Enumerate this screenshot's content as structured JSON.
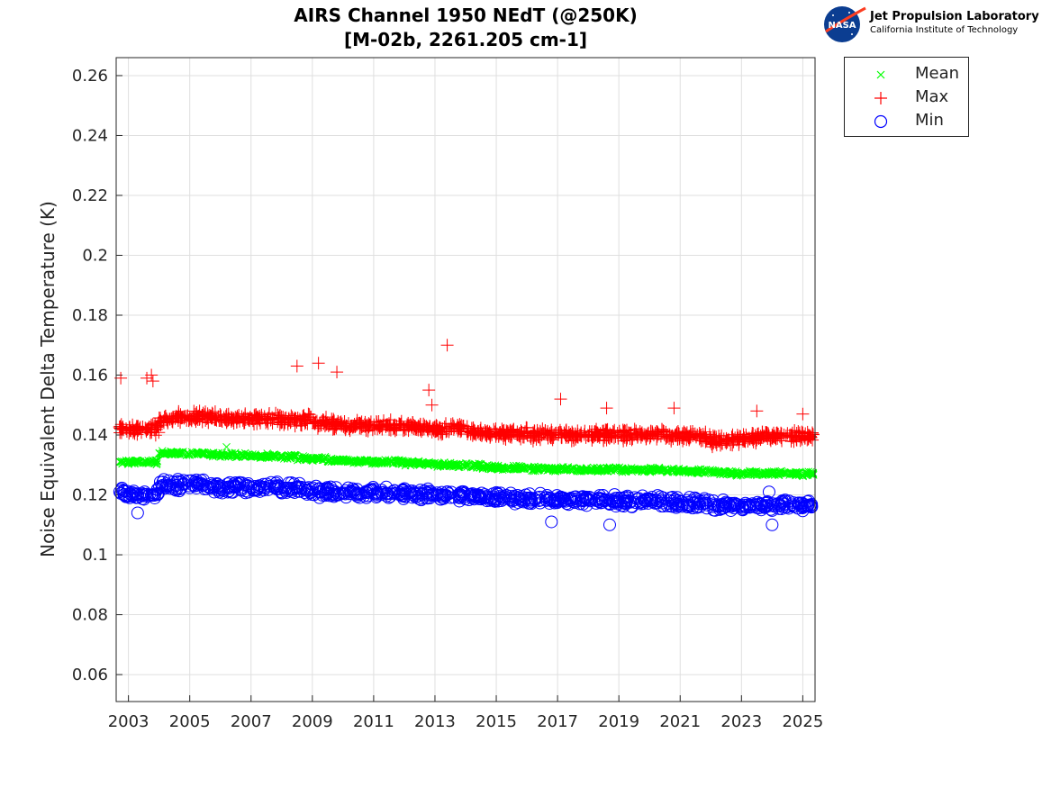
{
  "chart_data": {
    "type": "scatter",
    "title": [
      "AIRS Channel 1950 NEdT (@250K)",
      "[M-02b, 2261.205 cm-1]"
    ],
    "xlabel": "",
    "ylabel": "Noise Equivalent Delta Temperature (K)",
    "xlim": [
      2002.6,
      2025.4
    ],
    "ylim": [
      0.051,
      0.266
    ],
    "xticks": [
      "2003",
      "2005",
      "2007",
      "2009",
      "2011",
      "2013",
      "2015",
      "2017",
      "2019",
      "2021",
      "2023",
      "2025"
    ],
    "yticks": [
      "0.06",
      "0.08",
      "0.1",
      "0.12",
      "0.14",
      "0.16",
      "0.18",
      "0.2",
      "0.22",
      "0.24",
      "0.26"
    ],
    "grid": true,
    "legend_position": "outside-top-right",
    "x": [
      2002.75,
      2003.25,
      2003.75,
      2004.25,
      2004.75,
      2005.25,
      2005.75,
      2006.25,
      2006.75,
      2007.25,
      2007.75,
      2008.25,
      2008.75,
      2009.25,
      2009.75,
      2010.25,
      2010.75,
      2011.25,
      2011.75,
      2012.25,
      2012.75,
      2013.25,
      2013.75,
      2014.25,
      2014.75,
      2015.25,
      2015.75,
      2016.25,
      2016.75,
      2017.25,
      2017.75,
      2018.25,
      2018.75,
      2019.25,
      2019.75,
      2020.25,
      2020.75,
      2021.25,
      2021.75,
      2022.25,
      2022.75,
      2023.25,
      2023.75,
      2024.25,
      2024.75,
      2025.25
    ],
    "series": [
      {
        "name": "Mean",
        "marker": "x",
        "color": "#00ff00",
        "values": [
          0.131,
          0.131,
          0.131,
          0.134,
          0.134,
          0.1338,
          0.1335,
          0.1333,
          0.1332,
          0.133,
          0.133,
          0.1328,
          0.1323,
          0.132,
          0.1315,
          0.1313,
          0.1312,
          0.131,
          0.131,
          0.1305,
          0.1303,
          0.13,
          0.13,
          0.1298,
          0.1293,
          0.129,
          0.129,
          0.1288,
          0.1287,
          0.1287,
          0.1285,
          0.1285,
          0.1285,
          0.1284,
          0.1283,
          0.1283,
          0.128,
          0.128,
          0.1278,
          0.1275,
          0.1272,
          0.1272,
          0.1272,
          0.1272,
          0.1271,
          0.127
        ],
        "outliers": [
          [
            2006.2,
            0.136
          ]
        ]
      },
      {
        "name": "Max",
        "marker": "+",
        "color": "#ff0000",
        "values": [
          0.142,
          0.142,
          0.142,
          0.145,
          0.146,
          0.146,
          0.146,
          0.1455,
          0.1455,
          0.1455,
          0.1455,
          0.145,
          0.145,
          0.144,
          0.1435,
          0.143,
          0.143,
          0.143,
          0.143,
          0.1425,
          0.1425,
          0.142,
          0.142,
          0.141,
          0.1405,
          0.1405,
          0.1405,
          0.14,
          0.1405,
          0.14,
          0.14,
          0.14,
          0.14,
          0.14,
          0.14,
          0.14,
          0.1395,
          0.1395,
          0.1395,
          0.138,
          0.1385,
          0.139,
          0.1395,
          0.1395,
          0.1395,
          0.1395
        ],
        "outliers": [
          [
            2002.75,
            0.159
          ],
          [
            2003.6,
            0.159
          ],
          [
            2003.75,
            0.16
          ],
          [
            2003.8,
            0.158
          ],
          [
            2008.5,
            0.163
          ],
          [
            2009.2,
            0.164
          ],
          [
            2009.8,
            0.161
          ],
          [
            2012.8,
            0.155
          ],
          [
            2012.9,
            0.15
          ],
          [
            2013.4,
            0.17
          ],
          [
            2017.1,
            0.152
          ],
          [
            2018.6,
            0.149
          ],
          [
            2020.8,
            0.149
          ],
          [
            2023.5,
            0.148
          ],
          [
            2025.0,
            0.147
          ]
        ]
      },
      {
        "name": "Min",
        "marker": "o",
        "color": "#0000ff",
        "values": [
          0.1205,
          0.12,
          0.12,
          0.123,
          0.1235,
          0.1232,
          0.1228,
          0.1225,
          0.1225,
          0.1225,
          0.1225,
          0.1222,
          0.1218,
          0.121,
          0.1208,
          0.121,
          0.121,
          0.1208,
          0.1205,
          0.1202,
          0.12,
          0.12,
          0.1198,
          0.1195,
          0.119,
          0.119,
          0.119,
          0.1185,
          0.1185,
          0.1183,
          0.1182,
          0.1182,
          0.118,
          0.1178,
          0.1178,
          0.118,
          0.1178,
          0.1175,
          0.117,
          0.1165,
          0.1165,
          0.1163,
          0.1163,
          0.1163,
          0.1163,
          0.1165
        ],
        "outliers": [
          [
            2003.3,
            0.114
          ],
          [
            2016.8,
            0.111
          ],
          [
            2018.7,
            0.11
          ],
          [
            2024.0,
            0.11
          ],
          [
            2023.9,
            0.121
          ]
        ]
      }
    ]
  },
  "logo": {
    "org": "Jet Propulsion Laboratory",
    "sub": "California Institute of Technology",
    "badge": "NASA"
  }
}
